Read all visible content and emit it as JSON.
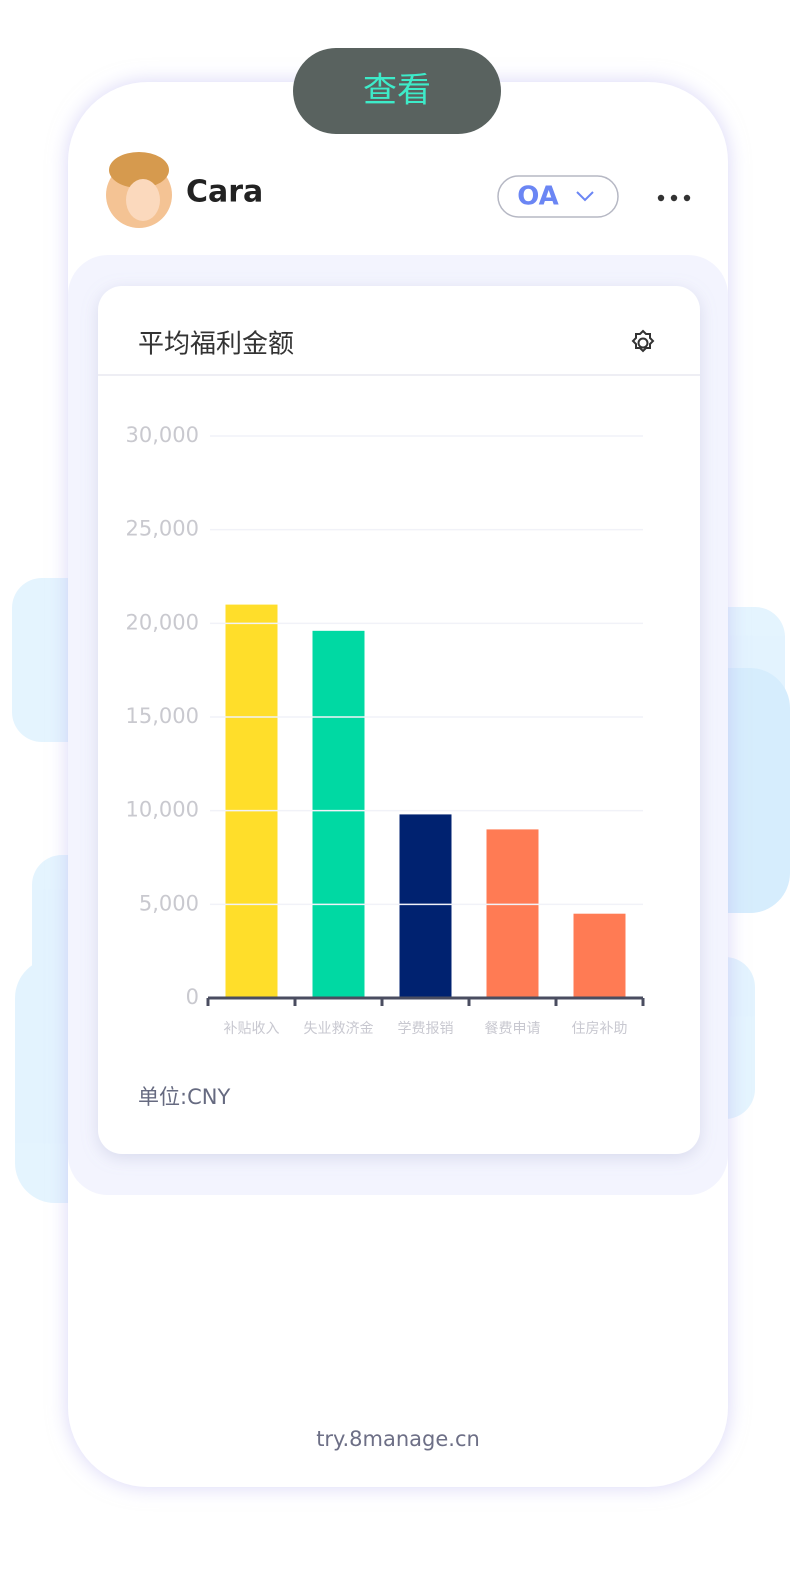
{
  "button": {
    "label": "查看"
  },
  "header": {
    "user_name": "Cara",
    "app_selector": "OA"
  },
  "chart_card": {
    "title": "平均福利金额",
    "unit_note": "单位:CNY"
  },
  "chart_data": {
    "type": "bar",
    "categories": [
      "补贴收入",
      "失业救济金",
      "学费报销",
      "餐费申请",
      "住房补助"
    ],
    "values": [
      21000,
      19600,
      9800,
      9000,
      4500
    ],
    "colors": [
      "#ffde2a",
      "#00d9a3",
      "#002270",
      "#ff7b54",
      "#ff7b54"
    ],
    "ylim": [
      0,
      30000
    ],
    "yticks": [
      0,
      {
        "value": 5000,
        "label": "5,000"
      },
      {
        "value": 10000,
        "label": "10,000"
      },
      {
        "value": 15000,
        "label": "15,000"
      },
      {
        "value": 20000,
        "label": "20,000"
      },
      {
        "value": 25000,
        "label": "25,000"
      },
      {
        "value": 30000,
        "label": "30,000"
      }
    ],
    "grid": true
  },
  "footer": {
    "url": "try.8manage.cn"
  }
}
